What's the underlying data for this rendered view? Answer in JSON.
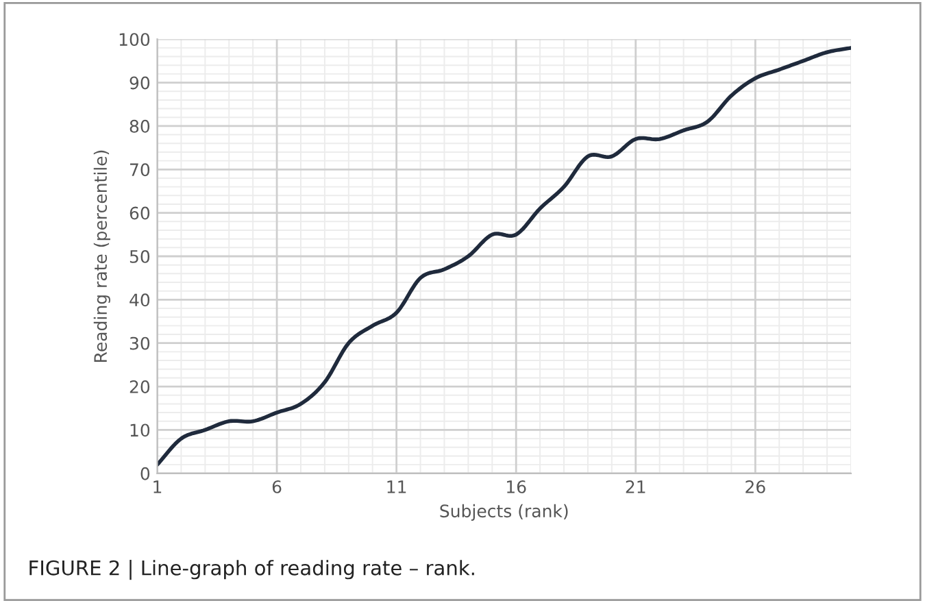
{
  "chart_data": {
    "type": "line",
    "xlabel": "Subjects (rank)",
    "ylabel": "Reading rate (percentile)",
    "x": [
      1,
      2,
      3,
      4,
      5,
      6,
      7,
      8,
      9,
      10,
      11,
      12,
      13,
      14,
      15,
      16,
      17,
      18,
      19,
      20,
      21,
      22,
      23,
      24,
      25,
      26,
      27,
      28,
      29,
      30
    ],
    "series": [
      {
        "color": "#1f2a3c",
        "values": [
          2,
          8,
          10,
          12,
          12,
          14,
          16,
          21,
          30,
          34,
          37,
          45,
          47,
          50,
          55,
          55,
          61,
          66,
          73,
          73,
          77,
          77,
          79,
          81,
          87,
          91,
          93,
          95,
          97,
          98
        ]
      }
    ],
    "xlim": [
      1,
      30
    ],
    "xticks": [
      1,
      6,
      11,
      16,
      21,
      26
    ],
    "ylim": [
      0,
      100
    ],
    "yticks": [
      0,
      10,
      20,
      30,
      40,
      50,
      60,
      70,
      80,
      90,
      100
    ],
    "grid": true,
    "legend": false,
    "marker": "none",
    "line_style": "solid",
    "annotations": [
      "FIGURE 2 | Line-graph of reading rate – rank."
    ]
  }
}
